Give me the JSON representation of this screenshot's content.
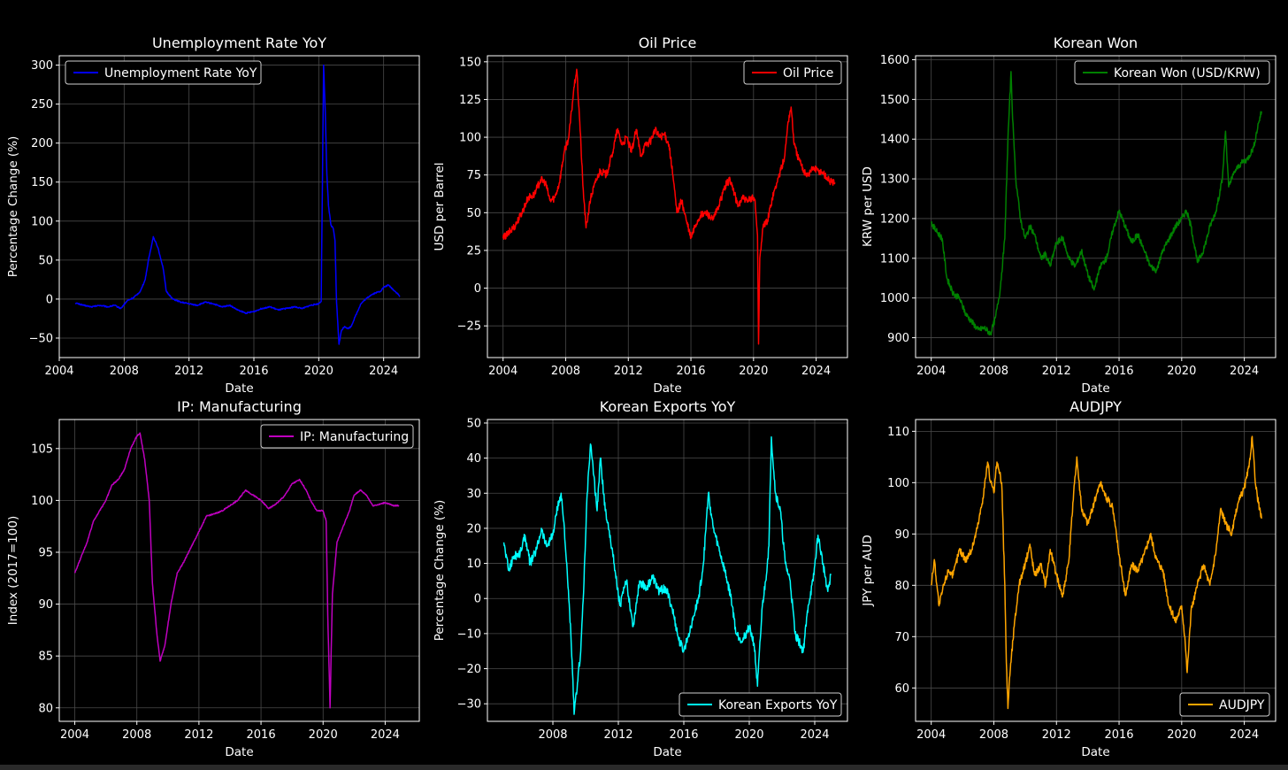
{
  "chart_data": [
    {
      "type": "line",
      "title": "Unemployment Rate YoY",
      "xlabel": "Date",
      "ylabel": "Percentage Change (%)",
      "xlim": [
        2004.0,
        2026.2
      ],
      "ylim": [
        -75,
        312
      ],
      "xticks": [
        "2004",
        "2008",
        "2012",
        "2016",
        "2020",
        "2024"
      ],
      "yticks": [
        "−50",
        "0",
        "50",
        "100",
        "150",
        "200",
        "250",
        "300"
      ],
      "legend": "top-left",
      "grid": true,
      "series": [
        {
          "name": "Unemployment Rate YoY",
          "color": "#0000ff",
          "x": [
            2005.0,
            2005.5,
            2006.0,
            2006.5,
            2007.0,
            2007.4,
            2007.8,
            2008.2,
            2008.6,
            2009.0,
            2009.3,
            2009.5,
            2009.8,
            2010.1,
            2010.4,
            2010.6,
            2011.0,
            2011.5,
            2012.0,
            2012.5,
            2013.0,
            2013.5,
            2014.0,
            2014.5,
            2015.0,
            2015.5,
            2016.0,
            2016.5,
            2017.0,
            2017.5,
            2018.0,
            2018.5,
            2019.0,
            2019.5,
            2020.0,
            2020.15,
            2020.3,
            2020.4,
            2020.5,
            2020.6,
            2020.75,
            2020.9,
            2021.0,
            2021.1,
            2021.25,
            2021.4,
            2021.6,
            2021.8,
            2022.0,
            2022.3,
            2022.6,
            2022.9,
            2023.2,
            2023.5,
            2023.8,
            2024.0,
            2024.3,
            2024.6,
            2024.9,
            2025.0
          ],
          "y": [
            -5,
            -8,
            -10,
            -8,
            -10,
            -8,
            -12,
            -2,
            2,
            10,
            25,
            50,
            80,
            65,
            40,
            10,
            0,
            -4,
            -6,
            -8,
            -4,
            -6,
            -10,
            -8,
            -14,
            -18,
            -16,
            -12,
            -10,
            -14,
            -12,
            -10,
            -12,
            -8,
            -6,
            -3,
            300,
            240,
            160,
            120,
            95,
            90,
            75,
            -5,
            -58,
            -40,
            -35,
            -38,
            -35,
            -20,
            -6,
            0,
            5,
            8,
            10,
            15,
            18,
            12,
            6,
            3
          ]
        }
      ]
    },
    {
      "type": "line",
      "title": "Oil Price",
      "xlabel": "Date",
      "ylabel": "USD per Barrel",
      "xlim": [
        2003.0,
        2026.0
      ],
      "ylim": [
        -46,
        154
      ],
      "xticks": [
        "2004",
        "2008",
        "2012",
        "2016",
        "2020",
        "2024"
      ],
      "yticks": [
        "−25",
        "0",
        "25",
        "50",
        "75",
        "100",
        "125",
        "150"
      ],
      "legend": "top-right",
      "grid": true,
      "series": [
        {
          "name": "Oil Price",
          "color": "#ff0000",
          "x": [
            2004.0,
            2004.4,
            2004.8,
            2005.2,
            2005.6,
            2006.0,
            2006.4,
            2006.7,
            2007.0,
            2007.3,
            2007.6,
            2007.9,
            2008.2,
            2008.5,
            2008.7,
            2008.9,
            2009.1,
            2009.3,
            2009.6,
            2009.9,
            2010.2,
            2010.6,
            2011.0,
            2011.3,
            2011.6,
            2011.9,
            2012.2,
            2012.5,
            2012.8,
            2013.1,
            2013.4,
            2013.7,
            2014.0,
            2014.3,
            2014.6,
            2014.9,
            2015.1,
            2015.4,
            2015.7,
            2016.0,
            2016.3,
            2016.6,
            2017.0,
            2017.4,
            2017.8,
            2018.2,
            2018.5,
            2018.8,
            2019.0,
            2019.3,
            2019.6,
            2019.9,
            2020.1,
            2020.25,
            2020.32,
            2020.4,
            2020.6,
            2020.9,
            2021.2,
            2021.5,
            2021.8,
            2022.0,
            2022.2,
            2022.4,
            2022.6,
            2022.9,
            2023.2,
            2023.5,
            2023.8,
            2024.1,
            2024.4,
            2024.7,
            2025.0,
            2025.2
          ],
          "y": [
            33,
            37,
            42,
            50,
            60,
            62,
            72,
            70,
            58,
            60,
            70,
            90,
            100,
            130,
            145,
            110,
            68,
            40,
            60,
            70,
            78,
            75,
            90,
            105,
            95,
            100,
            90,
            105,
            88,
            95,
            97,
            105,
            100,
            102,
            95,
            70,
            50,
            58,
            45,
            33,
            42,
            48,
            50,
            45,
            55,
            68,
            72,
            62,
            54,
            60,
            57,
            60,
            58,
            35,
            -37,
            20,
            40,
            45,
            60,
            70,
            80,
            88,
            110,
            120,
            95,
            85,
            78,
            75,
            80,
            78,
            77,
            73,
            70,
            70
          ]
        }
      ]
    },
    {
      "type": "line",
      "title": "Korean Won",
      "xlabel": "Date",
      "ylabel": "KRW per USD",
      "xlim": [
        2003.0,
        2026.0
      ],
      "ylim": [
        850,
        1610
      ],
      "xticks": [
        "2004",
        "2008",
        "2012",
        "2016",
        "2020",
        "2024"
      ],
      "yticks": [
        "900",
        "1000",
        "1100",
        "1200",
        "1300",
        "1400",
        "1500",
        "1600"
      ],
      "legend": "top-right",
      "grid": true,
      "series": [
        {
          "name": "Korean Won (USD/KRW)",
          "color": "#008000",
          "x": [
            2004.0,
            2004.3,
            2004.7,
            2005.0,
            2005.4,
            2005.8,
            2006.2,
            2006.6,
            2007.0,
            2007.4,
            2007.8,
            2008.1,
            2008.4,
            2008.7,
            2008.9,
            2009.1,
            2009.2,
            2009.4,
            2009.7,
            2010.0,
            2010.3,
            2010.6,
            2011.0,
            2011.3,
            2011.6,
            2012.0,
            2012.4,
            2012.8,
            2013.2,
            2013.6,
            2014.0,
            2014.4,
            2014.8,
            2015.2,
            2015.6,
            2016.0,
            2016.4,
            2016.8,
            2017.2,
            2017.6,
            2018.0,
            2018.4,
            2018.8,
            2019.2,
            2019.6,
            2020.0,
            2020.3,
            2020.6,
            2021.0,
            2021.4,
            2021.8,
            2022.2,
            2022.6,
            2022.8,
            2023.0,
            2023.4,
            2023.8,
            2024.2,
            2024.6,
            2024.9,
            2025.1
          ],
          "y": [
            1190,
            1170,
            1150,
            1050,
            1010,
            1000,
            960,
            940,
            920,
            925,
            910,
            950,
            1020,
            1150,
            1400,
            1570,
            1450,
            1300,
            1200,
            1150,
            1180,
            1160,
            1100,
            1110,
            1080,
            1140,
            1150,
            1100,
            1080,
            1120,
            1060,
            1020,
            1080,
            1100,
            1170,
            1220,
            1180,
            1140,
            1160,
            1120,
            1080,
            1070,
            1120,
            1150,
            1180,
            1200,
            1220,
            1180,
            1090,
            1120,
            1180,
            1220,
            1300,
            1420,
            1280,
            1320,
            1340,
            1350,
            1380,
            1440,
            1470
          ]
        }
      ]
    },
    {
      "type": "line",
      "title": "IP: Manufacturing",
      "xlabel": "Date",
      "ylabel": "Index (2017=100)",
      "xlim": [
        2003.0,
        2026.2
      ],
      "ylim": [
        78.7,
        107.8
      ],
      "xticks": [
        "2004",
        "2008",
        "2012",
        "2016",
        "2020",
        "2024"
      ],
      "yticks": [
        "80",
        "85",
        "90",
        "95",
        "100",
        "105"
      ],
      "legend": "top-right",
      "grid": true,
      "series": [
        {
          "name": "IP: Manufacturing",
          "color": "#bf00bf",
          "x": [
            2004.0,
            2004.4,
            2004.8,
            2005.2,
            2005.6,
            2006.0,
            2006.4,
            2006.8,
            2007.2,
            2007.6,
            2008.0,
            2008.2,
            2008.5,
            2008.8,
            2009.0,
            2009.3,
            2009.5,
            2009.8,
            2010.2,
            2010.6,
            2011.0,
            2011.5,
            2012.0,
            2012.5,
            2013.0,
            2013.5,
            2014.0,
            2014.5,
            2015.0,
            2015.5,
            2016.0,
            2016.5,
            2017.0,
            2017.5,
            2018.0,
            2018.5,
            2018.9,
            2019.2,
            2019.6,
            2020.0,
            2020.2,
            2020.3,
            2020.45,
            2020.6,
            2020.9,
            2021.3,
            2021.7,
            2022.0,
            2022.4,
            2022.8,
            2023.2,
            2023.6,
            2024.0,
            2024.5,
            2024.9
          ],
          "y": [
            93,
            94.5,
            96,
            98,
            99,
            100,
            101.5,
            102,
            103,
            105,
            106.2,
            106.5,
            104,
            100,
            92,
            87,
            84.5,
            86,
            90,
            93,
            94,
            95.5,
            97,
            98.5,
            98.7,
            99,
            99.5,
            100,
            101,
            100.5,
            100,
            99.2,
            99.7,
            100.4,
            101.6,
            102,
            101,
            100,
            99,
            99,
            98,
            89,
            80,
            91,
            96,
            97.5,
            99,
            100.5,
            101,
            100.5,
            99.5,
            99.6,
            99.8,
            99.5,
            99.5
          ]
        }
      ]
    },
    {
      "type": "line",
      "title": "Korean Exports YoY",
      "xlabel": "Date",
      "ylabel": "Percentage Change (%)",
      "xlim": [
        2004.0,
        2026.0
      ],
      "ylim": [
        -35,
        51
      ],
      "xticks": [
        "2008",
        "2012",
        "2016",
        "2020",
        "2024"
      ],
      "yticks": [
        "−30",
        "−20",
        "−10",
        "0",
        "10",
        "20",
        "30",
        "40",
        "50"
      ],
      "legend": "bottom-right",
      "grid": true,
      "series": [
        {
          "name": "Korean Exports YoY",
          "color": "#00ffff",
          "x": [
            2005.0,
            2005.3,
            2005.6,
            2006.0,
            2006.3,
            2006.6,
            2007.0,
            2007.3,
            2007.6,
            2008.0,
            2008.2,
            2008.5,
            2008.7,
            2008.9,
            2009.1,
            2009.3,
            2009.5,
            2009.7,
            2009.9,
            2010.1,
            2010.3,
            2010.5,
            2010.7,
            2010.9,
            2011.2,
            2011.5,
            2011.8,
            2012.1,
            2012.5,
            2012.9,
            2013.3,
            2013.7,
            2014.1,
            2014.5,
            2014.9,
            2015.3,
            2015.7,
            2016.0,
            2016.3,
            2016.6,
            2016.9,
            2017.2,
            2017.5,
            2017.8,
            2018.1,
            2018.5,
            2018.9,
            2019.2,
            2019.6,
            2020.0,
            2020.3,
            2020.5,
            2020.8,
            2021.0,
            2021.2,
            2021.35,
            2021.6,
            2021.9,
            2022.2,
            2022.5,
            2022.8,
            2023.0,
            2023.3,
            2023.6,
            2023.9,
            2024.2,
            2024.5,
            2024.8,
            2025.0
          ],
          "y": [
            16,
            8,
            12,
            13,
            18,
            10,
            14,
            20,
            15,
            18,
            24,
            30,
            20,
            5,
            -10,
            -33,
            -24,
            -15,
            5,
            30,
            44,
            35,
            25,
            40,
            25,
            18,
            8,
            -2,
            5,
            -8,
            5,
            3,
            6,
            2,
            3,
            -3,
            -12,
            -15,
            -10,
            -5,
            0,
            10,
            30,
            20,
            15,
            8,
            0,
            -10,
            -12,
            -8,
            -13,
            -25,
            -2,
            5,
            15,
            46,
            30,
            25,
            10,
            5,
            -10,
            -12,
            -15,
            -2,
            5,
            18,
            10,
            2,
            7
          ]
        }
      ]
    },
    {
      "type": "line",
      "title": "AUDJPY",
      "xlabel": "Date",
      "ylabel": "JPY per AUD",
      "xlim": [
        2003.0,
        2026.0
      ],
      "ylim": [
        53.5,
        112.3
      ],
      "xticks": [
        "2004",
        "2008",
        "2012",
        "2016",
        "2020",
        "2024"
      ],
      "yticks": [
        "60",
        "70",
        "80",
        "90",
        "100",
        "110"
      ],
      "legend": "bottom-right",
      "grid": true,
      "series": [
        {
          "name": "AUDJPY",
          "color": "#ffa500",
          "x": [
            2004.0,
            2004.2,
            2004.5,
            2004.8,
            2005.1,
            2005.4,
            2005.8,
            2006.2,
            2006.6,
            2007.0,
            2007.3,
            2007.6,
            2007.8,
            2008.0,
            2008.2,
            2008.5,
            2008.7,
            2008.8,
            2008.9,
            2009.0,
            2009.3,
            2009.6,
            2010.0,
            2010.3,
            2010.6,
            2011.0,
            2011.3,
            2011.6,
            2012.0,
            2012.4,
            2012.8,
            2013.1,
            2013.3,
            2013.6,
            2014.0,
            2014.4,
            2014.8,
            2015.2,
            2015.6,
            2016.0,
            2016.4,
            2016.8,
            2017.2,
            2017.6,
            2018.0,
            2018.4,
            2018.8,
            2019.2,
            2019.6,
            2020.0,
            2020.2,
            2020.35,
            2020.6,
            2021.0,
            2021.4,
            2021.8,
            2022.2,
            2022.5,
            2022.8,
            2023.2,
            2023.6,
            2024.0,
            2024.3,
            2024.5,
            2024.7,
            2024.9,
            2025.1
          ],
          "y": [
            80,
            85,
            76,
            80,
            83,
            82,
            87,
            85,
            87,
            92,
            97,
            104,
            100,
            98,
            104,
            100,
            80,
            65,
            56,
            62,
            72,
            80,
            84,
            88,
            82,
            84,
            80,
            87,
            82,
            78,
            85,
            98,
            105,
            95,
            92,
            96,
            100,
            97,
            95,
            86,
            78,
            84,
            83,
            86,
            90,
            85,
            83,
            76,
            73,
            76,
            70,
            63,
            75,
            80,
            84,
            80,
            87,
            95,
            92,
            90,
            96,
            99,
            103,
            109,
            100,
            96,
            93
          ]
        }
      ]
    }
  ]
}
